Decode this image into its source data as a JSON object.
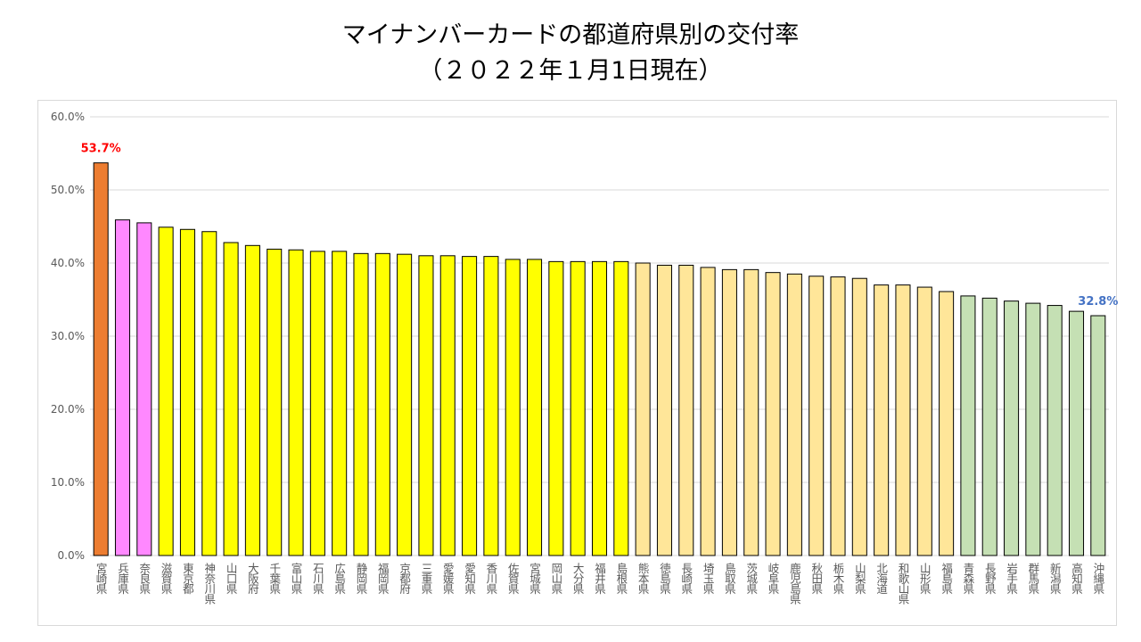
{
  "header": {
    "title_line1": "マイナンバーカードの都道府県別の交付率",
    "title_line2": "（２０２２年１月1日現在）"
  },
  "colors": {
    "max": "#ED7D31",
    "tier2": "#FF88FF",
    "tier3": "#FFFF00",
    "tier4": "#FFE699",
    "tier5": "#C5E0B4",
    "max_label": "#FF0000",
    "min_label": "#4472C4",
    "grid": "#d9d9d9",
    "tick_text": "#595959"
  },
  "chart_data": {
    "type": "bar",
    "title": "マイナンバーカードの都道府県別の交付率（２０２２年１月1日現在）",
    "xlabel": "",
    "ylabel": "",
    "ylim": [
      0,
      60
    ],
    "yticks": [
      "0.0%",
      "10.0%",
      "20.0%",
      "30.0%",
      "40.0%",
      "50.0%",
      "60.0%"
    ],
    "grid": true,
    "categories": [
      "宮崎県",
      "兵庫県",
      "奈良県",
      "滋賀県",
      "東京都",
      "神奈川県",
      "山口県",
      "大阪府",
      "千葉県",
      "富山県",
      "石川県",
      "広島県",
      "静岡県",
      "福岡県",
      "京都府",
      "三重県",
      "愛媛県",
      "愛知県",
      "香川県",
      "佐賀県",
      "宮城県",
      "岡山県",
      "大分県",
      "福井県",
      "島根県",
      "熊本県",
      "徳島県",
      "長崎県",
      "埼玉県",
      "鳥取県",
      "茨城県",
      "岐阜県",
      "鹿児島県",
      "秋田県",
      "栃木県",
      "山梨県",
      "北海道",
      "和歌山県",
      "山形県",
      "福島県",
      "青森県",
      "長野県",
      "岩手県",
      "群馬県",
      "新潟県",
      "高知県",
      "沖縄県"
    ],
    "values": [
      53.7,
      45.9,
      45.5,
      44.9,
      44.6,
      44.3,
      42.8,
      42.4,
      41.9,
      41.8,
      41.6,
      41.6,
      41.3,
      41.3,
      41.2,
      41.0,
      41.0,
      40.9,
      40.9,
      40.5,
      40.5,
      40.2,
      40.2,
      40.2,
      40.2,
      40.0,
      39.7,
      39.7,
      39.4,
      39.1,
      39.1,
      38.7,
      38.5,
      38.2,
      38.1,
      37.9,
      37.0,
      37.0,
      36.7,
      36.1,
      35.5,
      35.2,
      34.8,
      34.5,
      34.2,
      33.4,
      32.8
    ],
    "tiers": [
      1,
      2,
      2,
      3,
      3,
      3,
      3,
      3,
      3,
      3,
      3,
      3,
      3,
      3,
      3,
      3,
      3,
      3,
      3,
      3,
      3,
      3,
      3,
      3,
      3,
      4,
      4,
      4,
      4,
      4,
      4,
      4,
      4,
      4,
      4,
      4,
      4,
      4,
      4,
      4,
      5,
      5,
      5,
      5,
      5,
      5,
      5
    ],
    "annotations": [
      {
        "label": "53.7%",
        "index": 0
      },
      {
        "label": "32.8%",
        "index": 46
      }
    ]
  }
}
